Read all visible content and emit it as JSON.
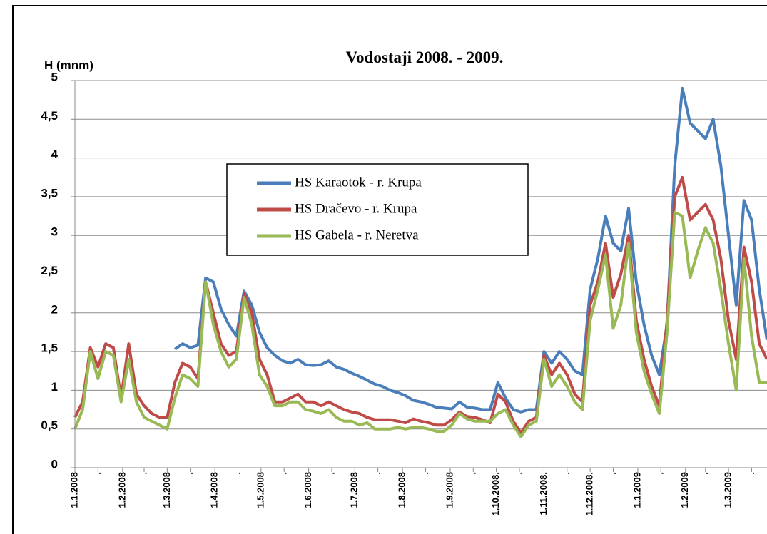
{
  "chart_data": {
    "type": "line",
    "title": "Vodostaji 2008. - 2009.",
    "y_label": "H (mnm)",
    "x": [
      0,
      5,
      10,
      15,
      20,
      25,
      30,
      35,
      40,
      45,
      50,
      55,
      60,
      65,
      70,
      75,
      80,
      85,
      90,
      95,
      100,
      105,
      110,
      115,
      120,
      125,
      130,
      135,
      140,
      145,
      150,
      155,
      160,
      165,
      170,
      175,
      180,
      185,
      190,
      195,
      200,
      205,
      210,
      215,
      220,
      225,
      230,
      235,
      240,
      245,
      250,
      255,
      260,
      265,
      270,
      275,
      280,
      285,
      290,
      295,
      300,
      305,
      310,
      315,
      320,
      325,
      330,
      335,
      340,
      345,
      350,
      355,
      360,
      365,
      370,
      375,
      380,
      385,
      390,
      395,
      400,
      405,
      410,
      415,
      420,
      425,
      430,
      435,
      440,
      445,
      450
    ],
    "xlim": [
      0,
      450
    ],
    "xticks": [
      {
        "value": 0,
        "label": "1.1.2008"
      },
      {
        "value": 15,
        "label": "."
      },
      {
        "value": 31,
        "label": "1.2.2008"
      },
      {
        "value": 45,
        "label": "."
      },
      {
        "value": 60,
        "label": "1.3.2008"
      },
      {
        "value": 75,
        "label": "."
      },
      {
        "value": 91,
        "label": "1.4.2008"
      },
      {
        "value": 106,
        "label": "."
      },
      {
        "value": 121,
        "label": "1.5.2008"
      },
      {
        "value": 136,
        "label": "."
      },
      {
        "value": 152,
        "label": "1.6.2008"
      },
      {
        "value": 167,
        "label": "."
      },
      {
        "value": 182,
        "label": "1.7.2008"
      },
      {
        "value": 197,
        "label": "."
      },
      {
        "value": 213,
        "label": "1.8.2008"
      },
      {
        "value": 228,
        "label": "."
      },
      {
        "value": 244,
        "label": "1.9.2008"
      },
      {
        "value": 259,
        "label": "."
      },
      {
        "value": 274,
        "label": "1.10.2008."
      },
      {
        "value": 289,
        "label": "."
      },
      {
        "value": 305,
        "label": "1.11.2008."
      },
      {
        "value": 320,
        "label": "."
      },
      {
        "value": 335,
        "label": "1.12.2008."
      },
      {
        "value": 350,
        "label": "."
      },
      {
        "value": 366,
        "label": "1.1.2009"
      },
      {
        "value": 381,
        "label": "."
      },
      {
        "value": 397,
        "label": "1.2.2009"
      },
      {
        "value": 410,
        "label": "."
      },
      {
        "value": 425,
        "label": "1.3.2009"
      },
      {
        "value": 440,
        "label": "."
      }
    ],
    "ylim": [
      0,
      5
    ],
    "yticks": [
      0,
      {
        "value": 0.5,
        "label": "0,5"
      },
      1,
      {
        "value": 1.5,
        "label": "1,5"
      },
      2,
      {
        "value": 2.5,
        "label": "2,5"
      },
      3,
      {
        "value": 3.5,
        "label": "3,5"
      },
      4,
      {
        "value": 4.5,
        "label": "4,5"
      },
      5
    ],
    "grid": true,
    "series": [
      {
        "name": "HS Karaotok - r. Krupa",
        "color": "#4a7ebb",
        "values": [
          null,
          null,
          null,
          null,
          null,
          null,
          null,
          null,
          null,
          null,
          null,
          null,
          null,
          1.53,
          1.6,
          1.55,
          1.58,
          2.45,
          2.4,
          2.05,
          1.85,
          1.7,
          2.28,
          2.1,
          1.75,
          1.55,
          1.45,
          1.38,
          1.35,
          1.4,
          1.33,
          1.32,
          1.33,
          1.38,
          1.3,
          1.27,
          1.22,
          1.18,
          1.13,
          1.08,
          1.05,
          1.0,
          0.97,
          0.93,
          0.87,
          0.85,
          0.82,
          0.78,
          0.77,
          0.76,
          0.85,
          0.78,
          0.77,
          0.75,
          0.75,
          1.1,
          0.9,
          0.75,
          0.72,
          0.75,
          0.75,
          1.5,
          1.35,
          1.5,
          1.4,
          1.25,
          1.2,
          2.3,
          2.7,
          3.25,
          2.9,
          2.8,
          3.35,
          2.4,
          1.85,
          1.45,
          1.2,
          1.85,
          3.9,
          4.9,
          4.45,
          4.35,
          4.25,
          4.5,
          3.9,
          3.0,
          2.1,
          3.45,
          3.2,
          2.3,
          1.65
        ]
      },
      {
        "name": "HS Dračevo - r. Krupa",
        "color": "#be4b48",
        "values": [
          0.65,
          0.85,
          1.55,
          1.3,
          1.6,
          1.55,
          0.9,
          1.6,
          0.95,
          0.8,
          0.7,
          0.65,
          0.65,
          1.1,
          1.35,
          1.3,
          1.15,
          2.4,
          2.0,
          1.6,
          1.45,
          1.5,
          2.25,
          2.0,
          1.4,
          1.2,
          0.85,
          0.85,
          0.9,
          0.95,
          0.85,
          0.85,
          0.8,
          0.85,
          0.8,
          0.75,
          0.72,
          0.7,
          0.65,
          0.62,
          0.62,
          0.62,
          0.6,
          0.58,
          0.63,
          0.6,
          0.58,
          0.55,
          0.55,
          0.62,
          0.72,
          0.66,
          0.65,
          0.62,
          0.58,
          0.95,
          0.85,
          0.6,
          0.45,
          0.6,
          0.65,
          1.45,
          1.2,
          1.35,
          1.2,
          0.95,
          0.85,
          2.1,
          2.4,
          2.9,
          2.2,
          2.5,
          3.0,
          1.9,
          1.4,
          1.05,
          0.8,
          1.9,
          3.5,
          3.75,
          3.2,
          3.3,
          3.4,
          3.2,
          2.7,
          1.9,
          1.4,
          2.85,
          2.4,
          1.6,
          1.4
        ]
      },
      {
        "name": "HS Gabela - r. Neretva",
        "color": "#98b954",
        "values": [
          0.5,
          0.75,
          1.5,
          1.15,
          1.5,
          1.45,
          0.85,
          1.4,
          0.85,
          0.65,
          0.6,
          0.55,
          0.5,
          0.9,
          1.2,
          1.15,
          1.05,
          2.4,
          1.85,
          1.5,
          1.3,
          1.4,
          2.2,
          1.85,
          1.2,
          1.05,
          0.8,
          0.8,
          0.85,
          0.85,
          0.75,
          0.73,
          0.7,
          0.75,
          0.65,
          0.6,
          0.6,
          0.55,
          0.58,
          0.5,
          0.5,
          0.5,
          0.52,
          0.5,
          0.52,
          0.52,
          0.5,
          0.47,
          0.47,
          0.55,
          0.7,
          0.63,
          0.6,
          0.6,
          0.6,
          0.7,
          0.75,
          0.55,
          0.4,
          0.55,
          0.6,
          1.4,
          1.05,
          1.2,
          1.05,
          0.85,
          0.75,
          1.9,
          2.3,
          2.75,
          1.8,
          2.1,
          2.9,
          1.75,
          1.25,
          0.95,
          0.7,
          1.75,
          3.3,
          3.25,
          2.45,
          2.8,
          3.1,
          2.9,
          2.3,
          1.6,
          1.0,
          2.7,
          1.7,
          1.1,
          1.1
        ]
      }
    ]
  }
}
